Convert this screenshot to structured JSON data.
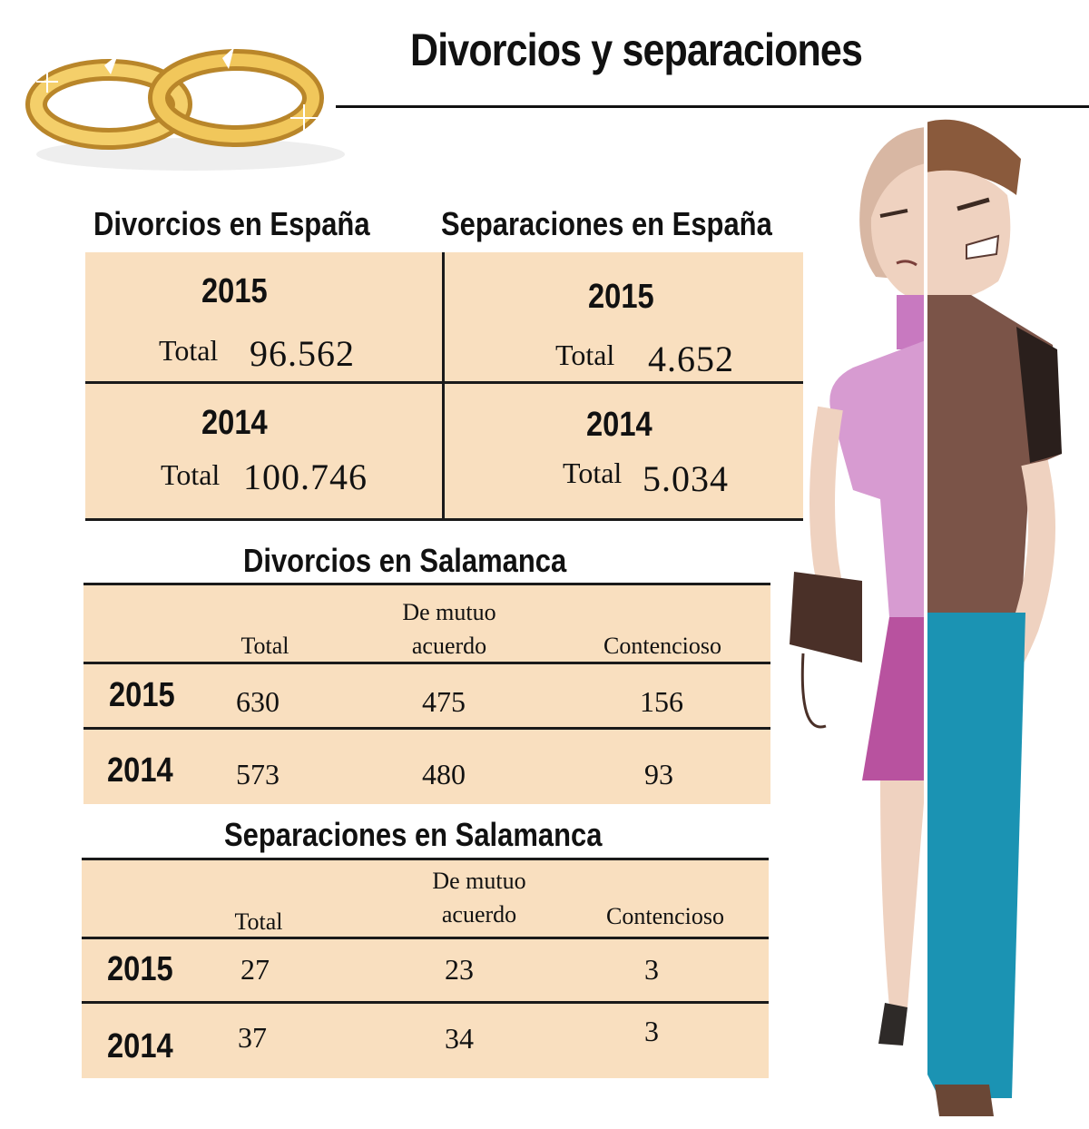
{
  "title": "Divorcios y separaciones",
  "chart_data": [
    {
      "type": "table",
      "title": "Divorcios en España",
      "rows": [
        {
          "year": "2015",
          "total_label": "Total",
          "total": "96.562"
        },
        {
          "year": "2014",
          "total_label": "Total",
          "total": "100.746"
        }
      ]
    },
    {
      "type": "table",
      "title": "Separaciones en España",
      "rows": [
        {
          "year": "2015",
          "total_label": "Total",
          "total": "4.652"
        },
        {
          "year": "2014",
          "total_label": "Total",
          "total": "5.034"
        }
      ]
    },
    {
      "type": "table",
      "title": "Divorcios en Salamanca",
      "columns": [
        "Total",
        "De mutuo acuerdo",
        "Contencioso"
      ],
      "rows": [
        {
          "year": "2015",
          "values": [
            "630",
            "475",
            "156"
          ]
        },
        {
          "year": "2014",
          "values": [
            "573",
            "480",
            "93"
          ]
        }
      ]
    },
    {
      "type": "table",
      "title": "Separaciones en Salamanca",
      "columns": [
        "Total",
        "De mutuo acuerdo",
        "Contencioso"
      ],
      "rows": [
        {
          "year": "2015",
          "values": [
            "27",
            "23",
            "3"
          ]
        },
        {
          "year": "2014",
          "values": [
            "37",
            "34",
            "3"
          ]
        }
      ]
    }
  ],
  "colors": {
    "table_fill": "#f9dfbf",
    "ring_gold": "#e8b84a",
    "woman_top": "#c98ac6",
    "woman_skirt": "#b5559e",
    "man_shirt": "#7a5547",
    "man_pants": "#1a94b3"
  },
  "icons": [
    "broken-rings-icon",
    "couple-illustration"
  ]
}
